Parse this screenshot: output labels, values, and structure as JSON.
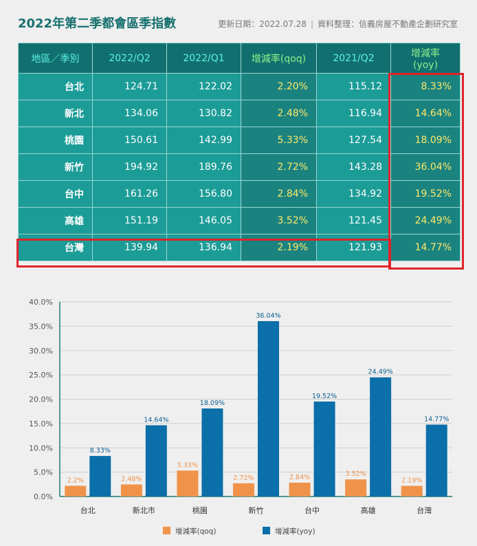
{
  "header": {
    "title": "2022年第二季都會區季指數",
    "update": "更新日期：2022.07.28",
    "separator": "|",
    "source": "資料整理：信義房屋不動產企劃研究室"
  },
  "table": {
    "headers": [
      "地區／季別",
      "2022/Q2",
      "2022/Q1",
      "增減率(qoq)",
      "2021/Q2",
      "增減率(yoy)"
    ],
    "rows": [
      [
        "台北",
        "124.71",
        "122.02",
        "2.20%",
        "115.12",
        "8.33%"
      ],
      [
        "新北",
        "134.06",
        "130.82",
        "2.48%",
        "116.94",
        "14.64%"
      ],
      [
        "桃園",
        "150.61",
        "142.99",
        "5.33%",
        "127.54",
        "18.09%"
      ],
      [
        "新竹",
        "194.92",
        "189.76",
        "2.72%",
        "143.28",
        "36.04%"
      ],
      [
        "台中",
        "161.26",
        "156.80",
        "2.84%",
        "134.92",
        "19.52%"
      ],
      [
        "高雄",
        "151.19",
        "146.05",
        "3.52%",
        "121.45",
        "24.49%"
      ],
      [
        "台灣",
        "139.94",
        "136.94",
        "2.19%",
        "121.93",
        "14.77%"
      ]
    ]
  },
  "chart_data": {
    "type": "bar",
    "categories": [
      "台北",
      "新北市",
      "桃園",
      "新竹",
      "台中",
      "高雄",
      "台灣"
    ],
    "series": [
      {
        "name": "增減率(qoq)",
        "values": [
          2.2,
          2.48,
          5.33,
          2.72,
          2.84,
          3.52,
          2.19
        ],
        "labels": [
          "2.2%",
          "2.48%",
          "5.33%",
          "2.72%",
          "2.84%",
          "3.52%",
          "2.19%"
        ],
        "color": "#f0934a"
      },
      {
        "name": "增減率(yoy)",
        "values": [
          8.33,
          14.64,
          18.09,
          36.04,
          19.52,
          24.49,
          14.77
        ],
        "labels": [
          "8.33%",
          "14.64%",
          "18.09%",
          "36.04%",
          "19.52%",
          "24.49%",
          "14.77%"
        ],
        "color": "#0b6fa9"
      }
    ],
    "yticks": [
      "0.0%",
      "5.0%",
      "10.0%",
      "15.0%",
      "20.0%",
      "25.0%",
      "30.0%",
      "35.0%",
      "40.0%"
    ],
    "ylim": [
      0,
      40
    ],
    "grid": true,
    "legend": "bottom"
  }
}
